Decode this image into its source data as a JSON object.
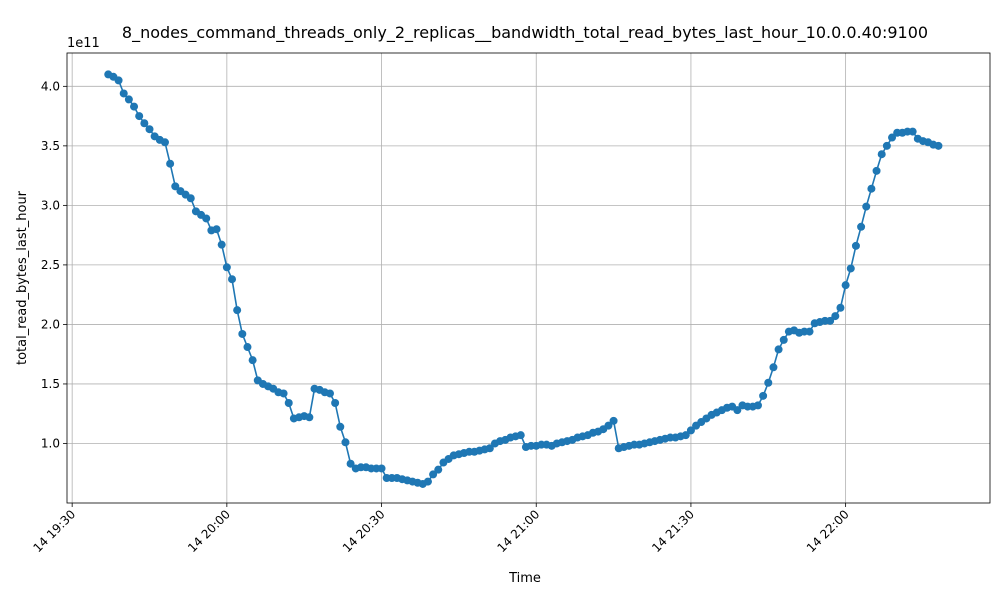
{
  "chart_data": {
    "type": "line",
    "title": "8_nodes_command_threads_only_2_replicas__bandwidth_total_read_bytes_last_hour_10.0.0.40:9100",
    "x_label": "Time",
    "y_label": "total_read_bytes_last_hour",
    "y_offset_label": "1e11",
    "x": [
      "14 19:37",
      "14 19:38",
      "14 19:39",
      "14 19:40",
      "14 19:41",
      "14 19:42",
      "14 19:43",
      "14 19:44",
      "14 19:45",
      "14 19:46",
      "14 19:47",
      "14 19:48",
      "14 19:49",
      "14 19:50",
      "14 19:51",
      "14 19:52",
      "14 19:53",
      "14 19:54",
      "14 19:55",
      "14 19:56",
      "14 19:57",
      "14 19:58",
      "14 19:59",
      "14 20:00",
      "14 20:01",
      "14 20:02",
      "14 20:03",
      "14 20:04",
      "14 20:05",
      "14 20:06",
      "14 20:07",
      "14 20:08",
      "14 20:09",
      "14 20:10",
      "14 20:11",
      "14 20:12",
      "14 20:13",
      "14 20:14",
      "14 20:15",
      "14 20:16",
      "14 20:17",
      "14 20:18",
      "14 20:19",
      "14 20:20",
      "14 20:21",
      "14 20:22",
      "14 20:23",
      "14 20:24",
      "14 20:25",
      "14 20:26",
      "14 20:27",
      "14 20:28",
      "14 20:29",
      "14 20:30",
      "14 20:31",
      "14 20:32",
      "14 20:33",
      "14 20:34",
      "14 20:35",
      "14 20:36",
      "14 20:37",
      "14 20:38",
      "14 20:39",
      "14 20:40",
      "14 20:41",
      "14 20:42",
      "14 20:43",
      "14 20:44",
      "14 20:45",
      "14 20:46",
      "14 20:47",
      "14 20:48",
      "14 20:49",
      "14 20:50",
      "14 20:51",
      "14 20:52",
      "14 20:53",
      "14 20:54",
      "14 20:55",
      "14 20:56",
      "14 20:57",
      "14 20:58",
      "14 20:59",
      "14 21:00",
      "14 21:01",
      "14 21:02",
      "14 21:03",
      "14 21:04",
      "14 21:05",
      "14 21:06",
      "14 21:07",
      "14 21:08",
      "14 21:09",
      "14 21:10",
      "14 21:11",
      "14 21:12",
      "14 21:13",
      "14 21:14",
      "14 21:15",
      "14 21:16",
      "14 21:17",
      "14 21:18",
      "14 21:19",
      "14 21:20",
      "14 21:21",
      "14 21:22",
      "14 21:23",
      "14 21:24",
      "14 21:25",
      "14 21:26",
      "14 21:27",
      "14 21:28",
      "14 21:29",
      "14 21:30",
      "14 21:31",
      "14 21:32",
      "14 21:33",
      "14 21:34",
      "14 21:35",
      "14 21:36",
      "14 21:37",
      "14 21:38",
      "14 21:39",
      "14 21:40",
      "14 21:41",
      "14 21:42",
      "14 21:43",
      "14 21:44",
      "14 21:45",
      "14 21:46",
      "14 21:47",
      "14 21:48",
      "14 21:49",
      "14 21:50",
      "14 21:51",
      "14 21:52",
      "14 21:53",
      "14 21:54",
      "14 21:55",
      "14 21:56",
      "14 21:57",
      "14 21:58",
      "14 21:59",
      "14 22:00",
      "14 22:01",
      "14 22:02",
      "14 22:03",
      "14 22:04",
      "14 22:05",
      "14 22:06",
      "14 22:07",
      "14 22:08",
      "14 22:09",
      "14 22:10",
      "14 22:11",
      "14 22:12",
      "14 22:13",
      "14 22:14",
      "14 22:15",
      "14 22:16",
      "14 22:17",
      "14 22:18"
    ],
    "series": [
      {
        "name": "total_read_bytes_last_hour",
        "color": "#1f77b4",
        "values": [
          4.1,
          4.08,
          4.05,
          3.94,
          3.89,
          3.83,
          3.75,
          3.69,
          3.64,
          3.58,
          3.55,
          3.53,
          3.35,
          3.16,
          3.12,
          3.09,
          3.06,
          2.95,
          2.92,
          2.89,
          2.79,
          2.8,
          2.67,
          2.48,
          2.38,
          2.12,
          1.92,
          1.81,
          1.7,
          1.53,
          1.5,
          1.48,
          1.46,
          1.43,
          1.42,
          1.34,
          1.21,
          1.22,
          1.23,
          1.22,
          1.46,
          1.45,
          1.43,
          1.42,
          1.34,
          1.14,
          1.01,
          0.83,
          0.79,
          0.8,
          0.8,
          0.79,
          0.79,
          0.79,
          0.71,
          0.71,
          0.71,
          0.7,
          0.69,
          0.68,
          0.67,
          0.66,
          0.68,
          0.74,
          0.78,
          0.84,
          0.87,
          0.9,
          0.91,
          0.92,
          0.93,
          0.93,
          0.94,
          0.95,
          0.96,
          1.0,
          1.02,
          1.03,
          1.05,
          1.06,
          1.07,
          0.97,
          0.98,
          0.98,
          0.99,
          0.99,
          0.98,
          1.0,
          1.01,
          1.02,
          1.03,
          1.05,
          1.06,
          1.07,
          1.09,
          1.1,
          1.12,
          1.15,
          1.19,
          0.96,
          0.97,
          0.98,
          0.99,
          0.99,
          1.0,
          1.01,
          1.02,
          1.03,
          1.04,
          1.05,
          1.05,
          1.06,
          1.07,
          1.11,
          1.15,
          1.18,
          1.21,
          1.24,
          1.26,
          1.28,
          1.3,
          1.31,
          1.28,
          1.32,
          1.31,
          1.31,
          1.32,
          1.4,
          1.51,
          1.64,
          1.79,
          1.87,
          1.94,
          1.95,
          1.93,
          1.94,
          1.94,
          2.01,
          2.02,
          2.03,
          2.03,
          2.07,
          2.14,
          2.33,
          2.47,
          2.66,
          2.82,
          2.99,
          3.14,
          3.29,
          3.43,
          3.5,
          3.57,
          3.61,
          3.61,
          3.62,
          3.62,
          3.56,
          3.54,
          3.53,
          3.51,
          3.5
        ]
      }
    ],
    "xlim": [
      "14 19:29",
      "14 22:28"
    ],
    "xticks": [
      "14 19:30",
      "14 20:00",
      "14 20:30",
      "14 21:00",
      "14 21:30",
      "14 22:00"
    ],
    "ylim": [
      0.5,
      4.28
    ],
    "yticks": [
      {
        "value": 1,
        "label": "1.0"
      },
      {
        "value": 1.5,
        "label": "1.5"
      },
      {
        "value": 2,
        "label": "2.0"
      },
      {
        "value": 2.5,
        "label": "2.5"
      },
      {
        "value": 3,
        "label": "3.0"
      },
      {
        "value": 3.5,
        "label": "3.5"
      },
      {
        "value": 4,
        "label": "4.0"
      }
    ],
    "grid": true
  }
}
